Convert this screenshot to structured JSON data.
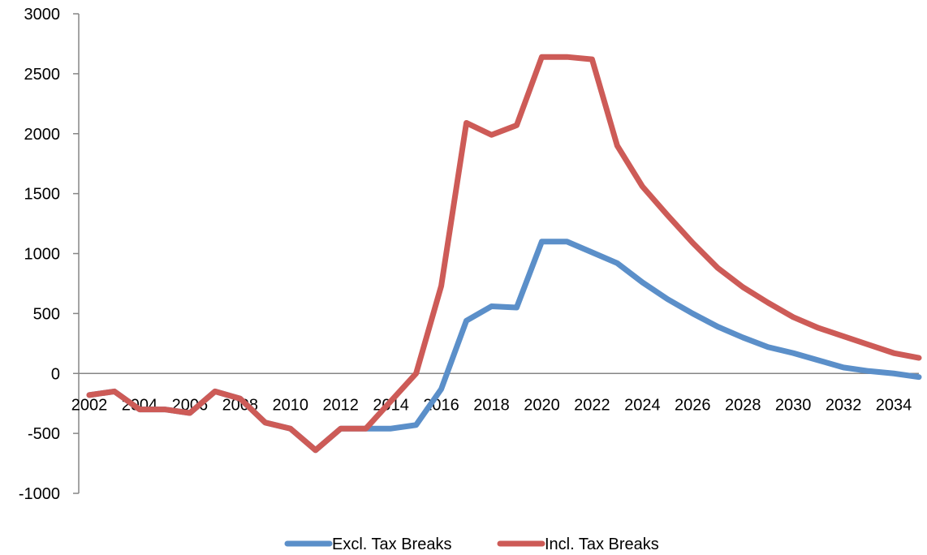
{
  "colors": {
    "excl": "#5B8FC9",
    "incl": "#CD5B57",
    "axis": "#868686"
  },
  "chart_data": {
    "type": "line",
    "title": "",
    "xlabel": "",
    "ylabel": "",
    "ylim": [
      -1000,
      3000
    ],
    "y_ticks": [
      3000,
      2500,
      2000,
      1500,
      1000,
      500,
      0,
      -500,
      -1000
    ],
    "y_tick_labels": [
      "3000",
      "2500",
      "2000",
      "1500",
      "1000",
      "500",
      "0",
      "-500",
      "-1000"
    ],
    "x": [
      2002,
      2003,
      2004,
      2005,
      2006,
      2007,
      2008,
      2009,
      2010,
      2011,
      2012,
      2013,
      2014,
      2015,
      2016,
      2017,
      2018,
      2019,
      2020,
      2021,
      2022,
      2023,
      2024,
      2025,
      2026,
      2027,
      2028,
      2029,
      2030,
      2031,
      2032,
      2033,
      2034,
      2035
    ],
    "x_tick_labels": [
      "2002",
      "2004",
      "2006",
      "2008",
      "2010",
      "2012",
      "2014",
      "2016",
      "2018",
      "2020",
      "2022",
      "2024",
      "2026",
      "2028",
      "2030",
      "2032",
      "2034"
    ],
    "grid": false,
    "legend_position": "bottom",
    "series": [
      {
        "name": "Excl. Tax Breaks",
        "color_key": "excl",
        "values": [
          -180,
          -150,
          -300,
          -300,
          -330,
          -150,
          -210,
          -410,
          -460,
          -640,
          -460,
          -460,
          -460,
          -430,
          -130,
          440,
          560,
          550,
          1100,
          1100,
          1010,
          920,
          760,
          620,
          500,
          390,
          300,
          220,
          170,
          110,
          50,
          20,
          0,
          -30
        ]
      },
      {
        "name": "Incl. Tax Breaks",
        "color_key": "incl",
        "values": [
          -180,
          -150,
          -300,
          -300,
          -330,
          -150,
          -210,
          -410,
          -460,
          -640,
          -460,
          -460,
          -230,
          0,
          730,
          2090,
          1990,
          2070,
          2640,
          2640,
          2620,
          1900,
          1560,
          1320,
          1090,
          880,
          720,
          590,
          470,
          380,
          310,
          240,
          170,
          130
        ]
      }
    ]
  }
}
